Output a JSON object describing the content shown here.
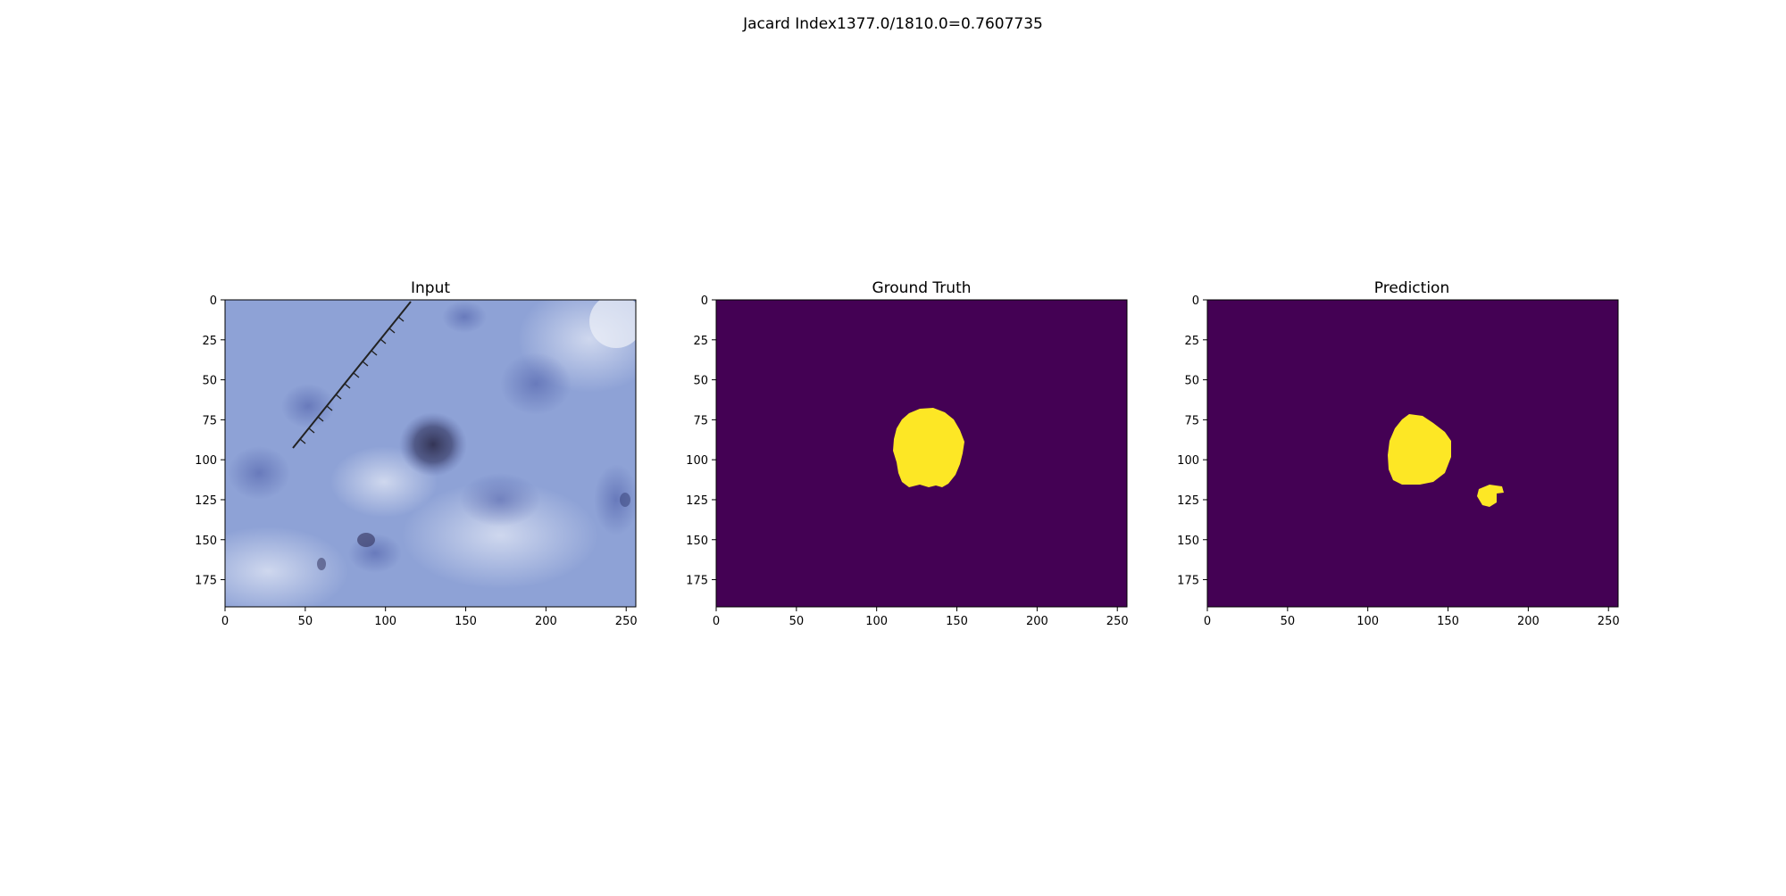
{
  "figure": {
    "suptitle": "Jacard Index1377.0/1810.0=0.7607735"
  },
  "panels": [
    {
      "title": "Input",
      "kind": "dermoscopy-image",
      "xticks": [
        "0",
        "50",
        "100",
        "150",
        "200",
        "250"
      ],
      "yticks": [
        "0",
        "25",
        "50",
        "75",
        "100",
        "125",
        "150",
        "175"
      ]
    },
    {
      "title": "Ground Truth",
      "kind": "mask",
      "xticks": [
        "0",
        "50",
        "100",
        "150",
        "200",
        "250"
      ],
      "yticks": [
        "0",
        "25",
        "50",
        "75",
        "100",
        "125",
        "150",
        "175"
      ]
    },
    {
      "title": "Prediction",
      "kind": "mask",
      "xticks": [
        "0",
        "50",
        "100",
        "150",
        "200",
        "250"
      ],
      "yticks": [
        "0",
        "25",
        "50",
        "75",
        "100",
        "125",
        "150",
        "175"
      ]
    }
  ],
  "image_extent": {
    "width": 256,
    "height": 192
  },
  "colors": {
    "mask_background": "#440154",
    "mask_foreground": "#fde725",
    "skin_base": "#8fa3d8",
    "lesion_dark": "#3d3f6b"
  }
}
